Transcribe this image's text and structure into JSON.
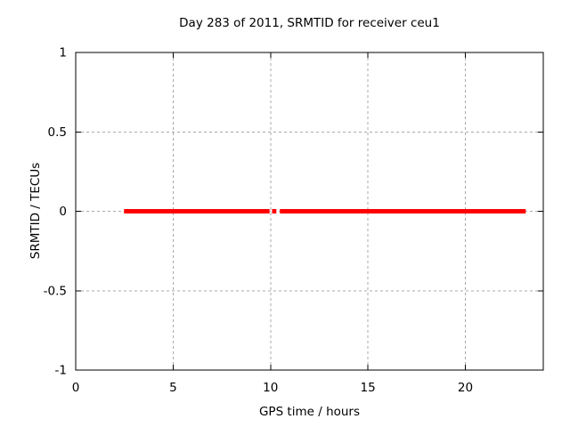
{
  "window": {
    "background": "#ffffff"
  },
  "chart_data": {
    "type": "line",
    "title": "Day 283 of 2011, SRMTID for receiver ceu1",
    "xlabel": "GPS time / hours",
    "ylabel": "SRMTID / TECUs",
    "xlim": [
      0,
      24
    ],
    "ylim": [
      -1,
      1
    ],
    "xticks": [
      0,
      5,
      10,
      15,
      20
    ],
    "xtick_labels": [
      "0",
      "5",
      "10",
      "15",
      "20"
    ],
    "yticks": [
      -1,
      -0.5,
      0,
      0.5,
      1
    ],
    "ytick_labels": [
      "-1",
      "-0.5",
      "0",
      "0.5",
      "1"
    ],
    "grid": true,
    "grid_color": "#a8a8a8",
    "grid_dash": "3,3",
    "axis_color": "#000000",
    "background_color": "#ffffff",
    "legend": "none",
    "series": [
      {
        "name": "SRMTID",
        "color": "#ff0000",
        "line_width": 5,
        "y": 0,
        "segments": [
          {
            "x_start": 2.48,
            "x_end": 9.95
          },
          {
            "x_start": 10.08,
            "x_end": 10.3
          },
          {
            "x_start": 10.48,
            "x_end": 23.1
          }
        ]
      }
    ]
  }
}
